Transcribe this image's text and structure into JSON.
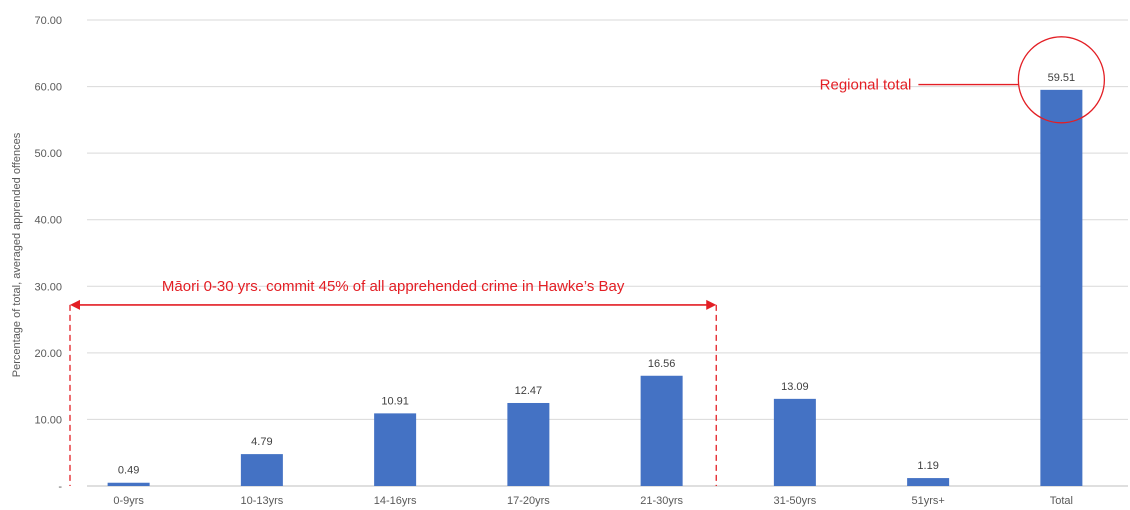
{
  "chart_data": {
    "type": "bar",
    "ylabel": "Percentage of total, averaged apprended offences",
    "ylim": [
      0,
      70
    ],
    "yticks": [
      "-",
      "10.00",
      "20.00",
      "30.00",
      "40.00",
      "50.00",
      "60.00",
      "70.00"
    ],
    "categories": [
      "0-9yrs",
      "10-13yrs",
      "14-16yrs",
      "17-20yrs",
      "21-30yrs",
      "31-50yrs",
      "51yrs+",
      "Total"
    ],
    "values": [
      0.49,
      4.79,
      10.91,
      12.47,
      16.56,
      13.09,
      1.19,
      59.51
    ],
    "data_labels": [
      "0.49",
      "4.79",
      "10.91",
      "12.47",
      "16.56",
      "13.09",
      "1.19",
      "59.51"
    ],
    "bar_color": "#4472C4",
    "grid": true,
    "annotations": {
      "bracket_text": "Māori 0-30 yrs. commit 45% of all apprehended crime in Hawke’s Bay",
      "bracket_categories": [
        "0-9yrs",
        "21-30yrs"
      ],
      "callout_text": "Regional total",
      "callout_category": "Total",
      "color": "#E31E24"
    }
  }
}
